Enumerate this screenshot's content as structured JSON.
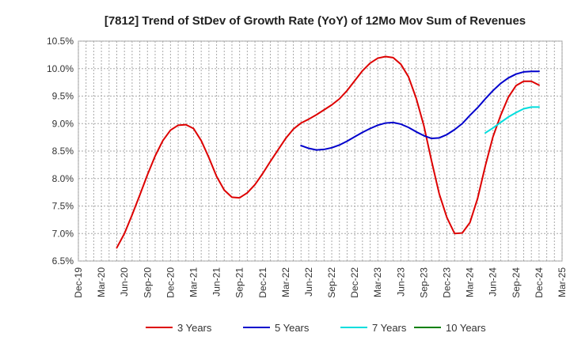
{
  "chart_data": {
    "type": "line",
    "title": "[7812]  Trend of StDev of Growth Rate (YoY) of 12Mo Mov Sum of Revenues",
    "xlabel": "",
    "ylabel": "",
    "x_ticks": [
      "Dec-19",
      "Mar-20",
      "Jun-20",
      "Sep-20",
      "Dec-20",
      "Mar-21",
      "Jun-21",
      "Sep-21",
      "Dec-21",
      "Mar-22",
      "Jun-22",
      "Sep-22",
      "Dec-22",
      "Mar-23",
      "Jun-23",
      "Sep-23",
      "Dec-23",
      "Mar-24",
      "Jun-24",
      "Sep-24",
      "Dec-24",
      "Mar-25"
    ],
    "y_ticks": [
      "6.5%",
      "7.0%",
      "7.5%",
      "8.0%",
      "8.5%",
      "9.0%",
      "9.5%",
      "10.0%",
      "10.5%"
    ],
    "y_tick_values": [
      6.5,
      7.0,
      7.5,
      8.0,
      8.5,
      9.0,
      9.5,
      10.0,
      10.5
    ],
    "ylim": [
      6.5,
      10.5
    ],
    "x_range_months": [
      0,
      63
    ],
    "grid": true,
    "legend_position": "bottom",
    "series": [
      {
        "name": "3 Years",
        "color": "#dd0000",
        "x": [
          5,
          6,
          7,
          8,
          9,
          10,
          11,
          12,
          13,
          14,
          15,
          16,
          17,
          18,
          19,
          20,
          21,
          22,
          23,
          24,
          25,
          26,
          27,
          28,
          29,
          30,
          31,
          32,
          33,
          34,
          35,
          36,
          37,
          38,
          39,
          40,
          41,
          42,
          43,
          44,
          45,
          46,
          47,
          48,
          49,
          50,
          51,
          52,
          53,
          54,
          55,
          56,
          57,
          58,
          59,
          60
        ],
        "values": [
          6.74,
          7.0,
          7.34,
          7.7,
          8.07,
          8.41,
          8.69,
          8.88,
          8.97,
          8.98,
          8.91,
          8.69,
          8.38,
          8.04,
          7.79,
          7.66,
          7.65,
          7.74,
          7.89,
          8.09,
          8.31,
          8.52,
          8.73,
          8.9,
          9.01,
          9.08,
          9.16,
          9.25,
          9.34,
          9.45,
          9.6,
          9.78,
          9.96,
          10.1,
          10.19,
          10.22,
          10.2,
          10.08,
          9.85,
          9.46,
          8.96,
          8.32,
          7.72,
          7.29,
          7.0,
          7.01,
          7.2,
          7.64,
          8.23,
          8.76,
          9.15,
          9.48,
          9.69,
          9.77,
          9.77,
          9.7
        ]
      },
      {
        "name": "5 Years",
        "color": "#0000cc",
        "x": [
          29,
          30,
          31,
          32,
          33,
          34,
          35,
          36,
          37,
          38,
          39,
          40,
          41,
          42,
          43,
          44,
          45,
          46,
          47,
          48,
          49,
          50,
          51,
          52,
          53,
          54,
          55,
          56,
          57,
          58,
          59,
          60
        ],
        "values": [
          8.6,
          8.55,
          8.52,
          8.53,
          8.56,
          8.61,
          8.68,
          8.76,
          8.84,
          8.91,
          8.97,
          9.01,
          9.02,
          8.99,
          8.93,
          8.85,
          8.78,
          8.73,
          8.74,
          8.8,
          8.89,
          9.0,
          9.15,
          9.29,
          9.45,
          9.6,
          9.73,
          9.83,
          9.9,
          9.94,
          9.95,
          9.95
        ]
      },
      {
        "name": "7 Years",
        "color": "#00dddd",
        "x": [
          53,
          54,
          55,
          56,
          57,
          58,
          59,
          60
        ],
        "values": [
          8.83,
          8.92,
          9.02,
          9.12,
          9.2,
          9.27,
          9.3,
          9.3
        ]
      },
      {
        "name": "10 Years",
        "color": "#008000",
        "x": [],
        "values": []
      }
    ]
  }
}
